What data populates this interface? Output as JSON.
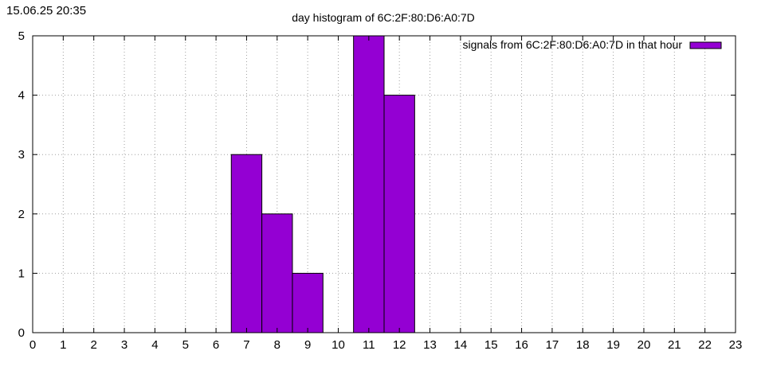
{
  "timestamp": "15.06.25 20:35",
  "chart_data": {
    "type": "bar",
    "title": "day histogram of 6C:2F:80:D6:A0:7D",
    "xlabel": "",
    "ylabel": "",
    "xlim": [
      0,
      23
    ],
    "ylim": [
      0,
      5
    ],
    "x_ticks": [
      0,
      1,
      2,
      3,
      4,
      5,
      6,
      7,
      8,
      9,
      10,
      11,
      12,
      13,
      14,
      15,
      16,
      17,
      18,
      19,
      20,
      21,
      22,
      23
    ],
    "y_ticks": [
      0,
      1,
      2,
      3,
      4,
      5
    ],
    "grid": true,
    "legend_position": "top-right",
    "series": [
      {
        "name": "signals from 6C:2F:80:D6:A0:7D in that hour",
        "color": "#9400d3",
        "x": [
          7,
          8,
          9,
          11,
          12
        ],
        "values": [
          3,
          2,
          1,
          5,
          4
        ]
      }
    ]
  }
}
